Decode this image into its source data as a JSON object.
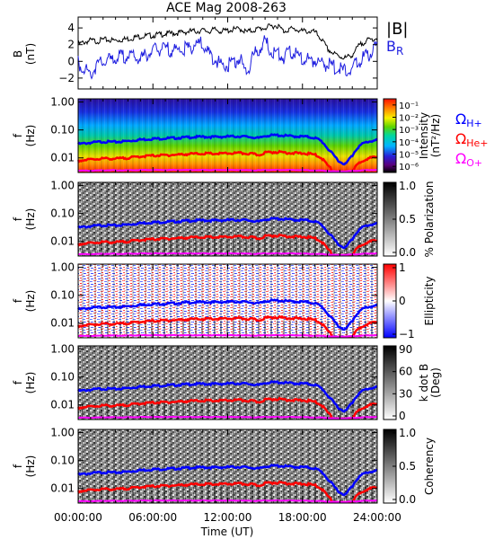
{
  "title": "ACE Mag 2008-263",
  "colors": {
    "total_field": "#000000",
    "radial_field": "#2020e0",
    "proton_gyro": "#0000ff",
    "helium_gyro": "#ff0000",
    "oxygen_gyro": "#ff00ff",
    "frame": "#000000"
  },
  "gyro_labels": {
    "h_symbol": "Ω",
    "h_sub": "H+",
    "he_symbol": "Ω",
    "he_sub": "He+",
    "o_symbol": "Ω",
    "o_sub": "O+"
  },
  "field_legend": {
    "total": "|B|",
    "radial_main": "B",
    "radial_sub": "R"
  },
  "freq_ylabel": {
    "main": "f",
    "units": "(Hz)"
  },
  "freq_ticks": [
    "1.00",
    "0.10",
    "0.01"
  ],
  "time_ticks": [
    "00:00:00",
    "06:00:00",
    "12:00:00",
    "18:00:00",
    "24:00:00"
  ],
  "xlabel": "Time (UT)",
  "chart_data": [
    {
      "type": "line",
      "panel": "field",
      "ylabel_main": "B",
      "ylabel_units": "(nT)",
      "ylim": [
        -3.3,
        5.3
      ],
      "yticks": [
        "4",
        "2",
        "0",
        "−2"
      ],
      "xlim_hours": [
        0,
        24
      ],
      "series": [
        {
          "name": "|B|",
          "x": [
            0,
            0.5,
            1,
            1.5,
            2,
            3,
            4,
            5,
            6,
            7,
            8,
            9,
            9.5,
            10,
            10.5,
            11,
            11.5,
            12,
            12.5,
            13,
            13.5,
            14,
            14.5,
            15,
            15.5,
            16,
            16.5,
            17,
            17.5,
            18,
            18.5,
            19,
            19.5,
            20,
            20.5,
            21,
            21.5,
            22,
            22.5,
            23,
            23.5,
            24
          ],
          "values": [
            2.0,
            2.3,
            2.5,
            2.4,
            2.6,
            2.5,
            2.7,
            3.0,
            3.1,
            3.3,
            3.4,
            3.6,
            3.6,
            3.7,
            3.6,
            3.8,
            3.6,
            3.7,
            3.8,
            3.9,
            3.5,
            3.7,
            3.9,
            4.0,
            4.2,
            4.3,
            3.6,
            3.9,
            3.8,
            3.6,
            3.6,
            3.5,
            2.7,
            1.5,
            0.9,
            0.6,
            0.4,
            0.8,
            1.8,
            2.4,
            2.6,
            2.8
          ]
        },
        {
          "name": "B_R",
          "x": [
            0,
            0.5,
            1,
            1.5,
            2,
            3,
            4,
            5,
            6,
            7,
            8,
            9,
            9.5,
            10,
            10.5,
            11,
            11.5,
            12,
            12.5,
            13,
            13.5,
            14,
            14.5,
            15,
            15.5,
            16,
            16.5,
            17,
            17.5,
            18,
            18.5,
            19,
            19.5,
            20,
            20.5,
            21,
            21.5,
            22,
            22.5,
            23,
            23.5,
            24
          ],
          "values": [
            -0.2,
            -0.8,
            -1.6,
            -0.4,
            -0.1,
            0.4,
            0.7,
            0.3,
            1.3,
            1.5,
            1.3,
            1.6,
            2.2,
            2.0,
            0.8,
            0.3,
            -0.5,
            -0.5,
            0.0,
            0.3,
            -1.5,
            0.5,
            1.4,
            2.4,
            1.2,
            1.0,
            0.4,
            1.4,
            0.7,
            0.2,
            0.2,
            0.2,
            -0.2,
            -0.4,
            -0.6,
            -1.0,
            -1.2,
            -0.8,
            0.0,
            0.5,
            1.0,
            1.8
          ]
        }
      ]
    },
    {
      "type": "heatmap",
      "panel": "intensity",
      "ylim_hz": [
        0.003,
        1.3
      ],
      "scale_type": "log",
      "colorbar_label": [
        "Intensity",
        "(nT²/Hz)"
      ],
      "colorbar_ticks": [
        "10⁻¹",
        "10⁻²",
        "10⁻³",
        "10⁻⁴",
        "10⁻⁵",
        "10⁻⁶"
      ],
      "colorbar_range_log10": [
        -6.5,
        -0.5
      ]
    },
    {
      "type": "heatmap",
      "panel": "polarization",
      "ylim_hz": [
        0.003,
        1.3
      ],
      "scale_type": "gray",
      "colorbar_label": [
        "% Polarization"
      ],
      "colorbar_ticks": [
        "1.0",
        "0.5",
        "0.0"
      ],
      "colorbar_range": [
        0,
        1
      ]
    },
    {
      "type": "heatmap",
      "panel": "ellipticity",
      "ylim_hz": [
        0.003,
        1.3
      ],
      "scale_type": "diverging",
      "colorbar_label": [
        "Ellipticity"
      ],
      "colorbar_ticks": [
        "1",
        "0",
        "−1"
      ],
      "colorbar_range": [
        -1,
        1
      ]
    },
    {
      "type": "heatmap",
      "panel": "kdotb",
      "ylim_hz": [
        0.003,
        1.3
      ],
      "scale_type": "gray",
      "colorbar_label": [
        "k dot B",
        "(Deg)"
      ],
      "colorbar_ticks": [
        "90",
        "60",
        "30",
        "0"
      ],
      "colorbar_range": [
        0,
        90
      ]
    },
    {
      "type": "heatmap",
      "panel": "coherency",
      "ylim_hz": [
        0.003,
        1.3
      ],
      "scale_type": "gray",
      "colorbar_label": [
        "Coherency"
      ],
      "colorbar_ticks": [
        "1.0",
        "0.5",
        "0.0"
      ],
      "colorbar_range": [
        0,
        1
      ]
    },
    {
      "type": "line",
      "panel": "gyrofrequencies",
      "x": [
        0,
        1,
        2,
        3,
        4,
        5,
        6,
        7,
        8,
        9,
        10,
        11,
        12,
        13,
        14,
        14.5,
        15,
        16,
        17,
        18,
        18.5,
        19,
        19.5,
        20,
        20.5,
        21,
        21.5,
        22,
        22.5,
        23,
        23.5,
        24
      ],
      "series": [
        {
          "name": "Ω_H+",
          "values": [
            0.031,
            0.035,
            0.038,
            0.037,
            0.04,
            0.045,
            0.048,
            0.05,
            0.052,
            0.055,
            0.057,
            0.056,
            0.058,
            0.059,
            0.055,
            0.05,
            0.062,
            0.065,
            0.06,
            0.058,
            0.056,
            0.052,
            0.04,
            0.022,
            0.012,
            0.007,
            0.006,
            0.012,
            0.025,
            0.035,
            0.04,
            0.043
          ]
        },
        {
          "name": "Ω_He+",
          "values": [
            0.0078,
            0.0088,
            0.0095,
            0.0093,
            0.01,
            0.0113,
            0.012,
            0.0125,
            0.013,
            0.0138,
            0.0143,
            0.014,
            0.0145,
            0.0148,
            0.0138,
            0.0125,
            0.0155,
            0.0163,
            0.015,
            0.0145,
            0.014,
            0.013,
            0.01,
            0.0055,
            0.003,
            0.0018,
            0.0015,
            0.003,
            0.0063,
            0.0088,
            0.01,
            0.0108
          ]
        },
        {
          "name": "Ω_O+",
          "values": [
            0.0035,
            0.0035,
            0.0036,
            0.0036,
            0.0036,
            0.0037,
            0.0037,
            0.0037,
            0.0037,
            0.0037,
            0.0037,
            0.0037,
            0.0037,
            0.0037,
            0.0036,
            0.0036,
            0.0037,
            0.0037,
            0.0037,
            0.0037,
            0.0036,
            0.0036,
            0.0035,
            0.0034,
            0.0033,
            0.0033,
            0.0033,
            0.0034,
            0.0035,
            0.0036,
            0.0037,
            0.0037
          ]
        }
      ]
    }
  ]
}
